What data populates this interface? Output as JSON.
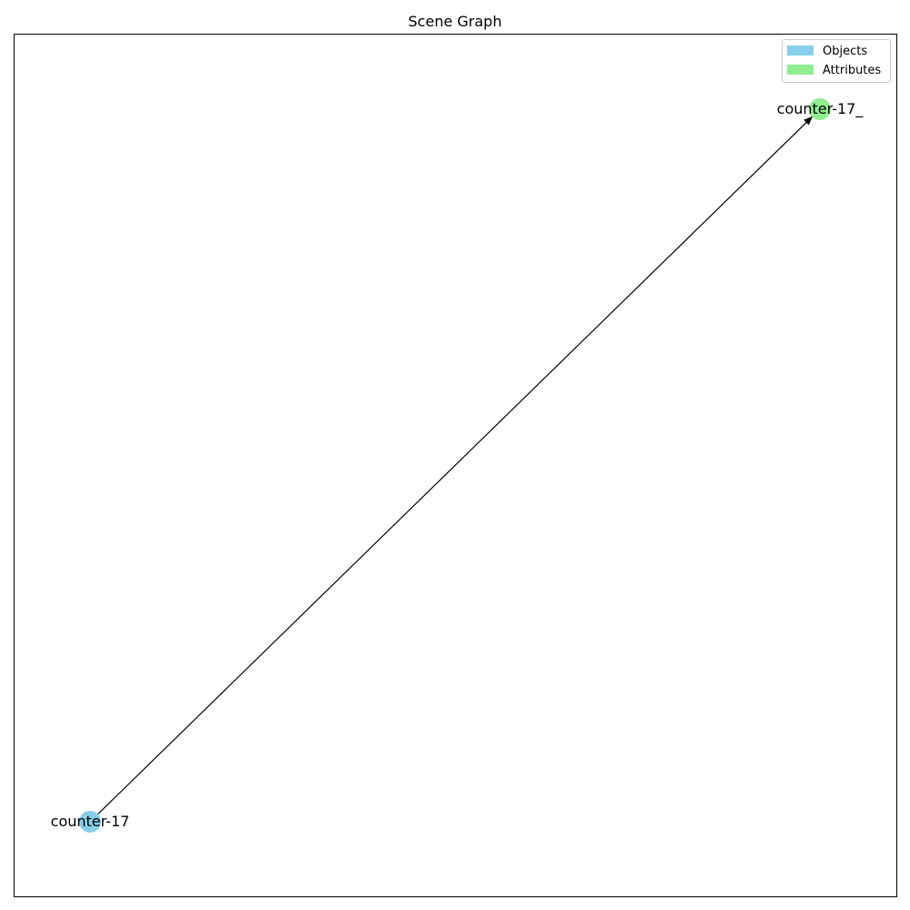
{
  "title": "Scene Graph",
  "legend": {
    "items": [
      {
        "label": "Objects",
        "color": "#87CEEB"
      },
      {
        "label": "Attributes",
        "color": "#90EE90"
      }
    ]
  },
  "nodes": [
    {
      "id": "counter-17",
      "label": "counter-17",
      "type": "object",
      "color": "#87CEEB"
    },
    {
      "id": "counter-17_",
      "label": "counter-17_",
      "type": "attribute",
      "color": "#90EE90"
    }
  ],
  "edges": [
    {
      "from": "counter-17",
      "to": "counter-17_",
      "color": "#000000"
    }
  ]
}
